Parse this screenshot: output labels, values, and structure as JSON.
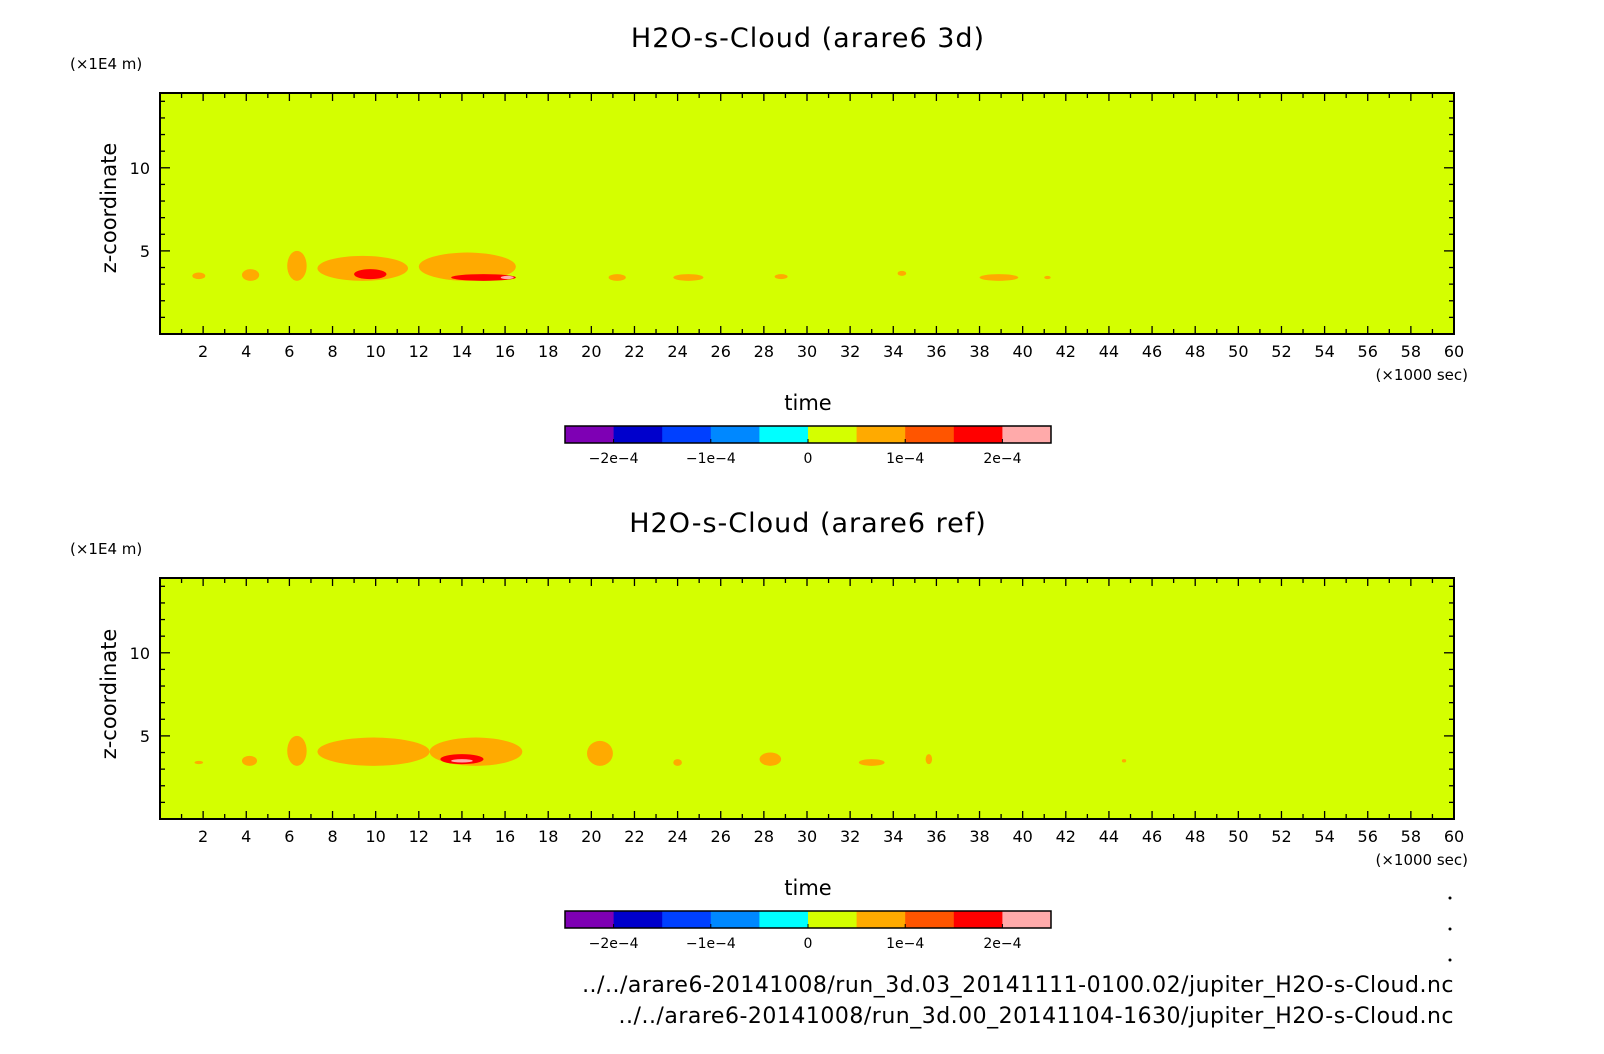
{
  "chart_data": [
    {
      "type": "heatmap",
      "title": "H2O-s-Cloud (arare6 3d)",
      "xlabel": "time",
      "ylabel": "z-coordinate",
      "x_unit": "(×1000 sec)",
      "y_unit": "(×1E4 m)",
      "xlim": [
        0,
        60
      ],
      "ylim": [
        0,
        14.5
      ],
      "x_ticks": [
        "2",
        "4",
        "6",
        "8",
        "10",
        "12",
        "14",
        "16",
        "18",
        "20",
        "22",
        "24",
        "26",
        "28",
        "30",
        "32",
        "34",
        "36",
        "38",
        "40",
        "42",
        "44",
        "46",
        "48",
        "50",
        "52",
        "54",
        "56",
        "58",
        "60"
      ],
      "y_ticks": [
        5,
        10
      ],
      "y_tick_labels": [
        "5",
        "10"
      ],
      "background_level": 0,
      "cloud_patches": [
        {
          "x": [
            1.5,
            2.1
          ],
          "y": [
            3.3,
            3.7
          ],
          "level": 5e-05
        },
        {
          "x": [
            3.8,
            4.6
          ],
          "y": [
            3.2,
            3.9
          ],
          "level": 5e-05
        },
        {
          "x": [
            5.9,
            6.8
          ],
          "y": [
            3.2,
            5.0
          ],
          "level": 5e-05
        },
        {
          "x": [
            7.3,
            11.5
          ],
          "y": [
            3.2,
            4.7
          ],
          "level": 5e-05
        },
        {
          "x": [
            9.0,
            10.5
          ],
          "y": [
            3.3,
            3.9
          ],
          "level": 0.00015
        },
        {
          "x": [
            12.0,
            16.5
          ],
          "y": [
            3.2,
            4.9
          ],
          "level": 5e-05
        },
        {
          "x": [
            13.5,
            16.5
          ],
          "y": [
            3.2,
            3.6
          ],
          "level": 0.00015
        },
        {
          "x": [
            15.8,
            16.4
          ],
          "y": [
            3.3,
            3.5
          ],
          "level": 0.00025
        },
        {
          "x": [
            20.8,
            21.6
          ],
          "y": [
            3.2,
            3.6
          ],
          "level": 5e-05
        },
        {
          "x": [
            23.8,
            25.2
          ],
          "y": [
            3.2,
            3.6
          ],
          "level": 5e-05
        },
        {
          "x": [
            28.5,
            29.1
          ],
          "y": [
            3.3,
            3.6
          ],
          "level": 5e-05
        },
        {
          "x": [
            34.2,
            34.6
          ],
          "y": [
            3.5,
            3.8
          ],
          "level": 5e-05
        },
        {
          "x": [
            38.0,
            39.8
          ],
          "y": [
            3.2,
            3.6
          ],
          "level": 5e-05
        },
        {
          "x": [
            41.0,
            41.3
          ],
          "y": [
            3.3,
            3.5
          ],
          "level": 5e-05
        }
      ]
    },
    {
      "type": "heatmap",
      "title": "H2O-s-Cloud (arare6 ref)",
      "xlabel": "time",
      "ylabel": "z-coordinate",
      "x_unit": "(×1000 sec)",
      "y_unit": "(×1E4 m)",
      "xlim": [
        0,
        60
      ],
      "ylim": [
        0,
        14.5
      ],
      "x_ticks": [
        "2",
        "4",
        "6",
        "8",
        "10",
        "12",
        "14",
        "16",
        "18",
        "20",
        "22",
        "24",
        "26",
        "28",
        "30",
        "32",
        "34",
        "36",
        "38",
        "40",
        "42",
        "44",
        "46",
        "48",
        "50",
        "52",
        "54",
        "56",
        "58",
        "60"
      ],
      "y_ticks": [
        5,
        10
      ],
      "y_tick_labels": [
        "5",
        "10"
      ],
      "background_level": 0,
      "cloud_patches": [
        {
          "x": [
            1.6,
            2.0
          ],
          "y": [
            3.3,
            3.5
          ],
          "level": 5e-05
        },
        {
          "x": [
            3.8,
            4.5
          ],
          "y": [
            3.2,
            3.8
          ],
          "level": 5e-05
        },
        {
          "x": [
            5.9,
            6.8
          ],
          "y": [
            3.2,
            5.0
          ],
          "level": 5e-05
        },
        {
          "x": [
            7.3,
            12.5
          ],
          "y": [
            3.2,
            4.9
          ],
          "level": 5e-05
        },
        {
          "x": [
            12.5,
            16.8
          ],
          "y": [
            3.2,
            4.9
          ],
          "level": 5e-05
        },
        {
          "x": [
            13.0,
            15.0
          ],
          "y": [
            3.3,
            3.9
          ],
          "level": 0.00015
        },
        {
          "x": [
            13.5,
            14.5
          ],
          "y": [
            3.4,
            3.6
          ],
          "level": 0.00025
        },
        {
          "x": [
            19.8,
            21.0
          ],
          "y": [
            3.2,
            4.7
          ],
          "level": 5e-05
        },
        {
          "x": [
            23.8,
            24.2
          ],
          "y": [
            3.2,
            3.6
          ],
          "level": 5e-05
        },
        {
          "x": [
            27.8,
            28.8
          ],
          "y": [
            3.2,
            4.0
          ],
          "level": 5e-05
        },
        {
          "x": [
            32.4,
            33.6
          ],
          "y": [
            3.2,
            3.6
          ],
          "level": 5e-05
        },
        {
          "x": [
            35.5,
            35.8
          ],
          "y": [
            3.3,
            3.9
          ],
          "level": 5e-05
        },
        {
          "x": [
            44.6,
            44.8
          ],
          "y": [
            3.4,
            3.6
          ],
          "level": 5e-05
        }
      ]
    }
  ],
  "colorbar": {
    "levels": [
      -0.00025,
      -0.0002,
      -0.00015,
      -0.0001,
      -5e-05,
      0,
      5e-05,
      0.0001,
      0.00015,
      0.0002,
      0.00025
    ],
    "colors": [
      "#7e00b4",
      "#0000cc",
      "#0040ff",
      "#0088ff",
      "#00ffff",
      "#d4ff00",
      "#ffaa00",
      "#ff5500",
      "#ff0000",
      "#ffaaaa"
    ],
    "tick_labels": [
      "−2e−4",
      "−1e−4",
      "0",
      "1e−4",
      "2e−4"
    ]
  },
  "file_paths": [
    "../../arare6-20141008/run_3d.03_20141111-0100.02/jupiter_H2O-s-Cloud.nc",
    "../../arare6-20141008/run_3d.00_20141104-1630/jupiter_H2O-s-Cloud.nc"
  ]
}
